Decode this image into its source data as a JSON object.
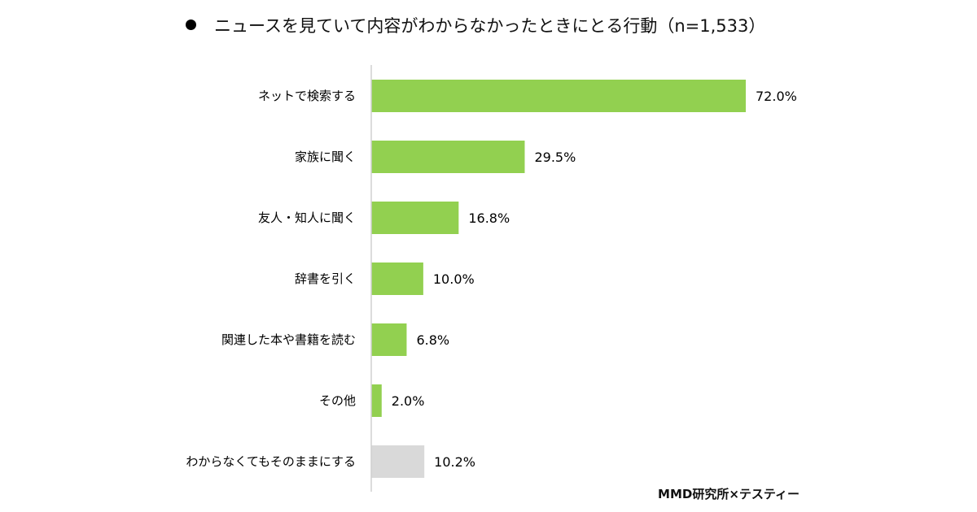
{
  "chart_data": {
    "type": "bar",
    "orientation": "horizontal",
    "title": "ニュースを見ていて内容がわからなかったときにとる行動（n=1,533）",
    "categories": [
      "ネットで検索する",
      "家族に聞く",
      "友人・知人に聞く",
      "辞書を引く",
      "関連した本や書籍を読む",
      "その他",
      "わからなくてもそのままにする"
    ],
    "values": [
      72.0,
      29.5,
      16.8,
      10.0,
      6.8,
      2.0,
      10.2
    ],
    "data_labels": [
      "72.0%",
      "29.5%",
      "16.8%",
      "10.0%",
      "6.8%",
      "2.0%",
      "10.2%"
    ],
    "bar_colors": [
      "#92D050",
      "#92D050",
      "#92D050",
      "#92D050",
      "#92D050",
      "#92D050",
      "#D9D9D9"
    ],
    "unit": "%",
    "xlim": [
      0,
      72
    ],
    "grid": false,
    "legend": "none"
  },
  "credit": "MMD研究所×テスティー"
}
